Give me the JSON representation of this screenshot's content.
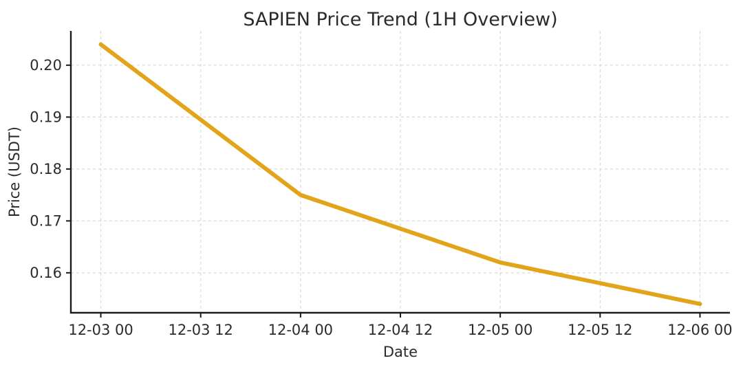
{
  "chart_data": {
    "type": "line",
    "title": "SAPIEN Price Trend (1H Overview)",
    "xlabel": "Date",
    "ylabel": "Price (USDT)",
    "categories": [
      "12-03 00",
      "12-03 12",
      "12-04 00",
      "12-04 12",
      "12-05 00",
      "12-05 12",
      "12-06 00"
    ],
    "x_hours": [
      0,
      12,
      24,
      36,
      48,
      60,
      72
    ],
    "series": [
      {
        "name": "SAPIEN price",
        "values": [
          0.204,
          0.1895,
          0.175,
          0.1685,
          0.162,
          0.158,
          0.154
        ],
        "color": "#E2A41A",
        "line_width": 6
      }
    ],
    "y_ticks": [
      0.16,
      0.17,
      0.18,
      0.19,
      0.2
    ],
    "y_tick_labels": [
      "0.16",
      "0.17",
      "0.18",
      "0.19",
      "0.20"
    ],
    "xlim_hours": [
      -3.6,
      75.6
    ],
    "ylim": [
      0.1523,
      0.2066
    ],
    "grid": true,
    "grid_style": "dashed",
    "grid_color": "#d8d8d8",
    "spine_color": "#1c1c1c",
    "legend_position": "none",
    "background_color": "#ffffff"
  }
}
